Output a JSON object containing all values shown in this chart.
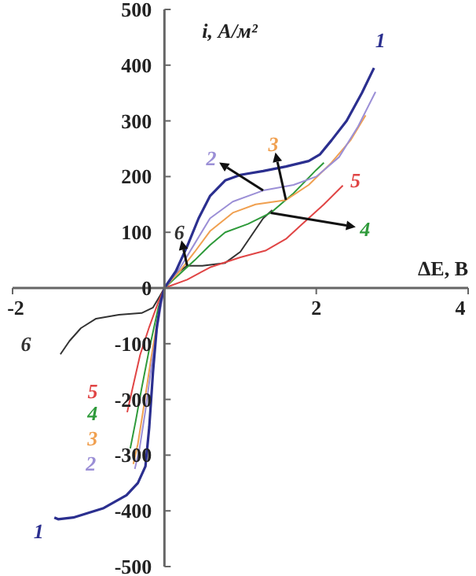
{
  "chart_data": {
    "type": "line",
    "xlabel": "ΔE, В",
    "ylabel": "i, А/м²",
    "xlim": [
      -2,
      4
    ],
    "xticks": [
      -2,
      {
        "value": 0,
        "label": null
      },
      2,
      4
    ],
    "ylim": [
      -500,
      500
    ],
    "yticks": [
      -500,
      -400,
      -300,
      -200,
      -100,
      0,
      100,
      200,
      300,
      400,
      500
    ],
    "grid": false,
    "legend": false,
    "marker": "none",
    "line_style": "solid",
    "series": [
      {
        "name": "1",
        "color": "#2b2f8f",
        "x": [
          -1.45,
          -1.4,
          -1.2,
          -0.8,
          -0.5,
          -0.35,
          -0.25,
          -0.2,
          -0.15,
          -0.1,
          -0.05,
          0,
          0.15,
          0.3,
          0.45,
          0.6,
          0.8,
          1.0,
          1.3,
          1.6,
          1.9,
          2.05,
          2.2,
          2.4,
          2.6,
          2.76
        ],
        "values": [
          -412,
          -415,
          -412,
          -395,
          -372,
          -350,
          -320,
          -250,
          -150,
          -70,
          -25,
          0,
          30,
          75,
          125,
          165,
          193,
          203,
          210,
          218,
          228,
          240,
          265,
          300,
          350,
          395
        ]
      },
      {
        "name": "2",
        "color": "#9b8fd6",
        "x": [
          -0.39,
          -0.33,
          -0.25,
          -0.15,
          -0.05,
          0,
          0.2,
          0.4,
          0.6,
          0.9,
          1.3,
          1.7,
          2.0,
          2.3,
          2.55,
          2.78
        ],
        "values": [
          -325,
          -290,
          -220,
          -120,
          -35,
          0,
          35,
          80,
          125,
          155,
          175,
          185,
          200,
          235,
          290,
          352
        ]
      },
      {
        "name": "3",
        "color": "#f0a050",
        "x": [
          -0.41,
          -0.35,
          -0.28,
          -0.18,
          -0.07,
          0,
          0.2,
          0.4,
          0.6,
          0.9,
          1.2,
          1.6,
          1.9,
          2.2,
          2.45,
          2.65
        ],
        "values": [
          -316,
          -280,
          -220,
          -130,
          -40,
          0,
          30,
          65,
          102,
          135,
          150,
          158,
          185,
          225,
          265,
          310
        ]
      },
      {
        "name": "4",
        "color": "#2e9a3a",
        "x": [
          -0.45,
          -0.38,
          -0.3,
          -0.2,
          -0.08,
          0,
          0.2,
          0.4,
          0.6,
          0.8,
          1.1,
          1.4,
          1.7,
          2.0,
          2.1
        ],
        "values": [
          -288,
          -240,
          -180,
          -110,
          -35,
          0,
          25,
          50,
          77,
          100,
          115,
          135,
          170,
          212,
          225
        ]
      },
      {
        "name": "5",
        "color": "#e04545",
        "x": [
          -0.49,
          -0.42,
          -0.32,
          -0.2,
          -0.08,
          0,
          0.3,
          0.6,
          1.0,
          1.33,
          1.6,
          1.8,
          2.1,
          2.35
        ],
        "values": [
          -223,
          -180,
          -120,
          -70,
          -25,
          0,
          15,
          37,
          55,
          67,
          88,
          113,
          150,
          184
        ]
      },
      {
        "name": "6",
        "color": "#333333",
        "x": [
          -1.37,
          -1.25,
          -1.1,
          -0.9,
          -0.6,
          -0.3,
          -0.15,
          -0.05,
          0,
          0.15,
          0.3,
          0.5,
          0.8,
          1.0,
          1.15,
          1.3,
          1.42
        ],
        "values": [
          -119,
          -95,
          -72,
          -55,
          -48,
          -45,
          -35,
          -12,
          0,
          25,
          40,
          40,
          45,
          65,
          95,
          125,
          140
        ]
      }
    ]
  }
}
